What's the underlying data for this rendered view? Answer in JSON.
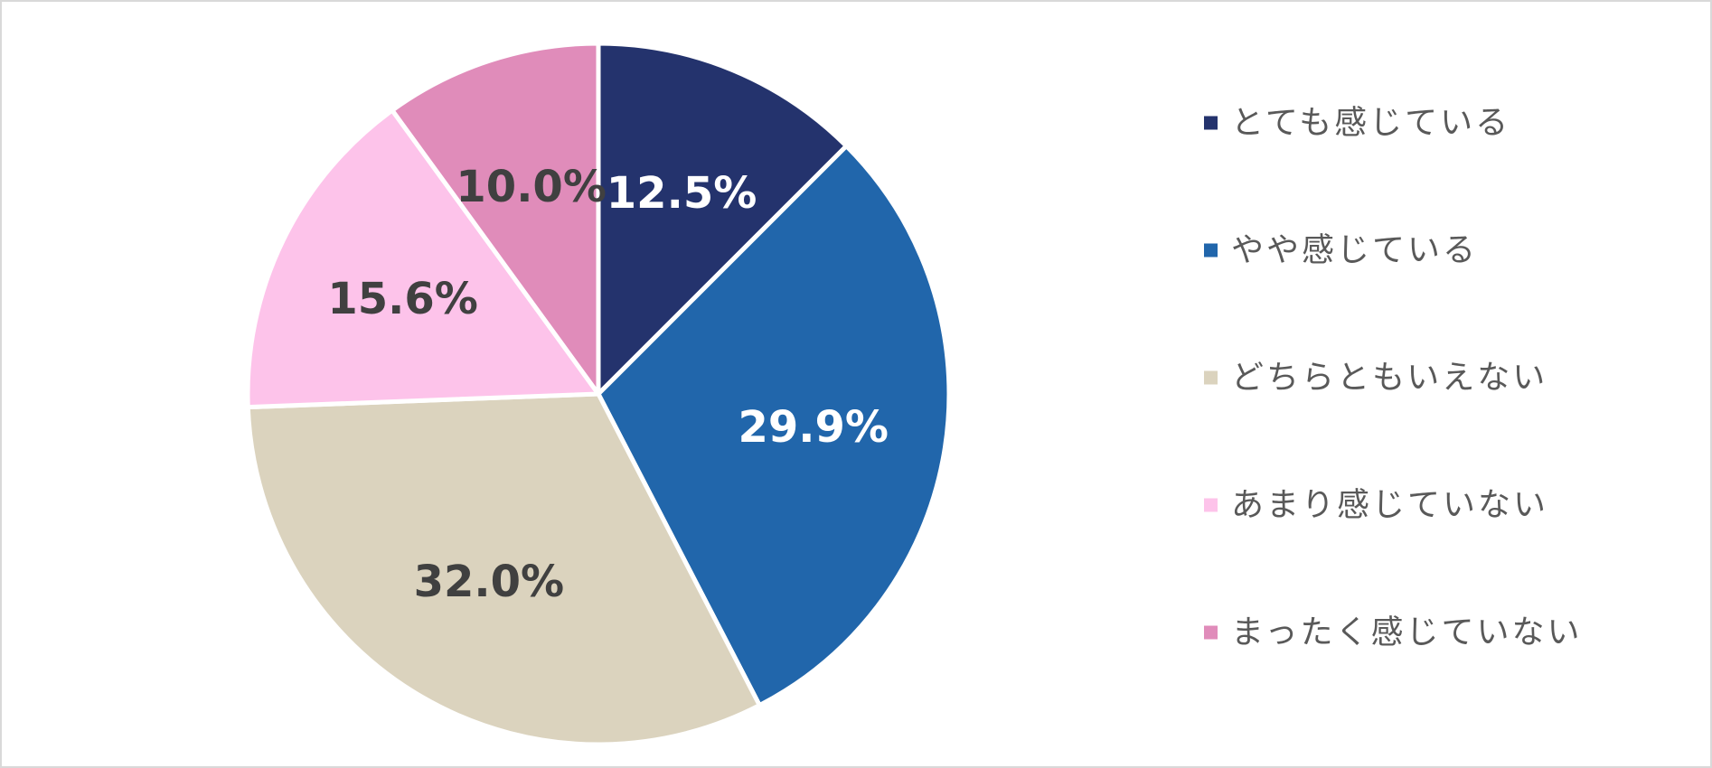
{
  "chart_data": {
    "type": "pie",
    "title": "",
    "start_angle_deg": 0,
    "direction": "clockwise",
    "legend_position": "right",
    "slices": [
      {
        "label": "とても感じている",
        "value": 12.5,
        "value_label": "12.5%",
        "color": "#24336d",
        "label_color": "#ffffff"
      },
      {
        "label": "やや感じている",
        "value": 29.9,
        "value_label": "29.9%",
        "color": "#2166ab",
        "label_color": "#ffffff"
      },
      {
        "label": "どちらともいえない",
        "value": 32.0,
        "value_label": "32.0%",
        "color": "#dbd3be",
        "label_color": "#404040"
      },
      {
        "label": "あまり感じていない",
        "value": 15.6,
        "value_label": "15.6%",
        "color": "#fdc3ea",
        "label_color": "#404040"
      },
      {
        "label": "まったく感じていない",
        "value": 10.0,
        "value_label": "10.0%",
        "color": "#e08cba",
        "label_color": "#404040"
      }
    ]
  }
}
